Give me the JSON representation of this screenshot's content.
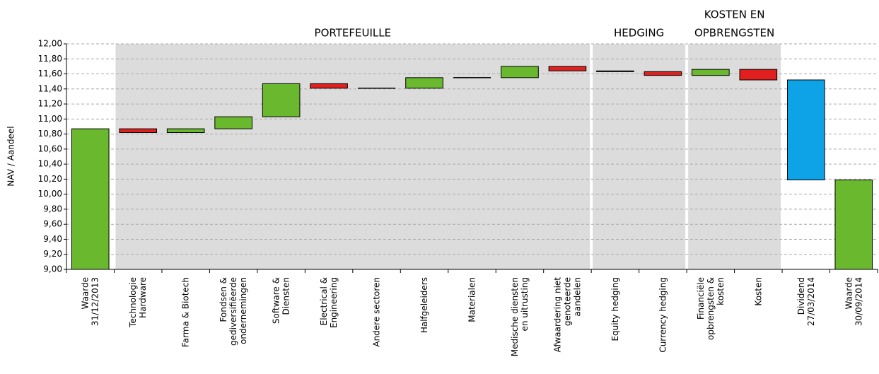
{
  "chart_data": {
    "type": "waterfall",
    "y_label": "NAV / Aandeel",
    "categories": [
      [
        "Waarde",
        "31/12/2013"
      ],
      [
        "Technologie",
        "Hardware"
      ],
      [
        "Farma & Biotech"
      ],
      [
        "Fondsen &",
        "gediversifiëerde",
        "ondernemingen"
      ],
      [
        "Software &",
        "Diensten"
      ],
      [
        "Electrical &",
        "Engineering"
      ],
      [
        "Andere sectoren"
      ],
      [
        "Halfgeleiders"
      ],
      [
        "Materialen"
      ],
      [
        "Medische diensten",
        "en uitrusting"
      ],
      [
        "Afwaardering niet",
        "genoteerde",
        "aandelen"
      ],
      [
        "Equity hedging"
      ],
      [
        "Currency hedging"
      ],
      [
        "Financiële",
        "opbrengsten &",
        "kosten"
      ],
      [
        "Kosten"
      ],
      [
        "Dividend",
        "27/03/2014"
      ],
      [
        "Waarde",
        "30/09/2014"
      ]
    ],
    "measure": [
      "absolute",
      "relative",
      "relative",
      "relative",
      "relative",
      "relative",
      "relative",
      "relative",
      "relative",
      "relative",
      "relative",
      "relative",
      "relative",
      "relative",
      "relative",
      "relative",
      "absolute"
    ],
    "values": [
      10.87,
      -0.05,
      0.05,
      0.16,
      0.44,
      -0.06,
      0,
      0.14,
      0,
      0.15,
      -0.06,
      -0.01,
      -0.05,
      0.08,
      -0.14,
      -1.33,
      10.19
    ],
    "colors": [
      "#6ab82e",
      "#e0201f",
      "#6ab82e",
      "#6ab82e",
      "#6ab82e",
      "#e0201f",
      "#000000",
      "#6ab82e",
      "#000000",
      "#6ab82e",
      "#e0201f",
      "#000000",
      "#e0201f",
      "#6ab82e",
      "#e0201f",
      "#0ea3e6",
      "#6ab82e"
    ],
    "groups": [
      {
        "label": [
          "PORTEFEUILLE"
        ],
        "start": 1,
        "end": 10
      },
      {
        "label": [
          "HEDGING"
        ],
        "start": 11,
        "end": 12
      },
      {
        "label": [
          "KOSTEN EN",
          "OPBRENGSTEN"
        ],
        "start": 13,
        "end": 14
      }
    ],
    "ylim": [
      9,
      12
    ],
    "yticks": [
      {
        "value": 9,
        "label": "9,00"
      },
      {
        "value": 9.2,
        "label": "9,20"
      },
      {
        "value": 9.4,
        "label": "9,40"
      },
      {
        "value": 9.6,
        "label": "9,60"
      },
      {
        "value": 9.8,
        "label": "9,80"
      },
      {
        "value": 10,
        "label": "10,00"
      },
      {
        "value": 10.2,
        "label": "10,20"
      },
      {
        "value": 10.4,
        "label": "10,40"
      },
      {
        "value": 10.6,
        "label": "10,60"
      },
      {
        "value": 10.8,
        "label": "10,80"
      },
      {
        "value": 11,
        "label": "11,00"
      },
      {
        "value": 11.2,
        "label": "11,20"
      },
      {
        "value": 11.4,
        "label": "11,40"
      },
      {
        "value": 11.6,
        "label": "11,60"
      },
      {
        "value": 11.8,
        "label": "11,80"
      },
      {
        "value": 12,
        "label": "12,00"
      }
    ],
    "grid": true
  }
}
